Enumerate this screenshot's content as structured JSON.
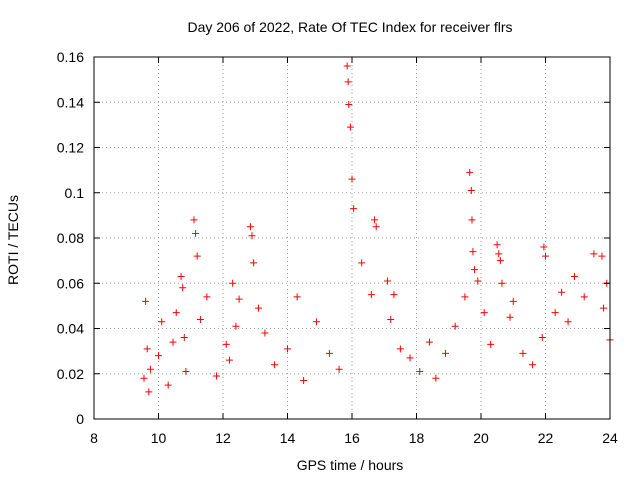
{
  "chart_data": {
    "type": "scatter",
    "title": "Day 206 of 2022, Rate Of TEC Index for receiver flrs",
    "xlabel": "GPS time / hours",
    "ylabel": "ROTI / TECUs",
    "xlim": [
      8,
      24
    ],
    "ylim": [
      0,
      0.16
    ],
    "x_ticks": [
      8,
      10,
      12,
      14,
      16,
      18,
      20,
      22,
      24
    ],
    "x_tick_labels": [
      "8",
      "10",
      "12",
      "14",
      "16",
      "18",
      "20",
      "22",
      "24"
    ],
    "y_ticks": [
      0,
      0.02,
      0.04,
      0.06,
      0.08,
      0.1,
      0.12,
      0.14,
      0.16
    ],
    "y_tick_labels": [
      "0",
      "0.02",
      "0.04",
      "0.06",
      "0.08",
      "0.1",
      "0.12",
      "0.14",
      "0.16"
    ],
    "grid": true,
    "marker": "plus",
    "series_color": "#ff0000",
    "series": [
      {
        "name": "ROTI",
        "x": [
          9.55,
          9.6,
          9.65,
          9.7,
          9.75,
          10.0,
          10.1,
          10.3,
          10.45,
          10.55,
          10.7,
          10.75,
          10.8,
          10.85,
          11.1,
          11.15,
          11.2,
          11.3,
          11.5,
          11.8,
          12.1,
          12.2,
          12.3,
          12.4,
          12.5,
          12.85,
          12.9,
          12.95,
          13.1,
          13.3,
          13.6,
          14.0,
          14.3,
          14.5,
          14.9,
          15.3,
          15.6,
          15.85,
          15.88,
          15.9,
          15.95,
          16.0,
          16.05,
          16.3,
          16.6,
          16.7,
          16.75,
          17.1,
          17.2,
          17.3,
          17.5,
          17.8,
          18.1,
          18.4,
          18.6,
          18.9,
          19.2,
          19.5,
          19.65,
          19.7,
          19.72,
          19.75,
          19.8,
          19.9,
          20.1,
          20.3,
          20.5,
          20.55,
          20.6,
          20.65,
          20.9,
          21.0,
          21.3,
          21.6,
          21.9,
          21.95,
          22.0,
          22.3,
          22.5,
          22.7,
          22.9,
          23.2,
          23.5,
          23.75,
          23.8,
          23.9,
          24.0
        ],
        "y": [
          0.018,
          0.052,
          0.031,
          0.012,
          0.022,
          0.028,
          0.043,
          0.015,
          0.034,
          0.047,
          0.063,
          0.058,
          0.036,
          0.021,
          0.088,
          0.082,
          0.072,
          0.044,
          0.054,
          0.019,
          0.033,
          0.026,
          0.06,
          0.041,
          0.053,
          0.085,
          0.081,
          0.069,
          0.049,
          0.038,
          0.024,
          0.031,
          0.054,
          0.017,
          0.043,
          0.029,
          0.022,
          0.156,
          0.149,
          0.139,
          0.129,
          0.106,
          0.093,
          0.069,
          0.055,
          0.088,
          0.085,
          0.061,
          0.044,
          0.055,
          0.031,
          0.027,
          0.021,
          0.034,
          0.018,
          0.029,
          0.041,
          0.054,
          0.109,
          0.101,
          0.088,
          0.074,
          0.066,
          0.061,
          0.047,
          0.033,
          0.077,
          0.073,
          0.07,
          0.06,
          0.045,
          0.052,
          0.029,
          0.024,
          0.036,
          0.076,
          0.072,
          0.047,
          0.056,
          0.043,
          0.063,
          0.054,
          0.073,
          0.072,
          0.049,
          0.06,
          0.035
        ]
      }
    ]
  }
}
